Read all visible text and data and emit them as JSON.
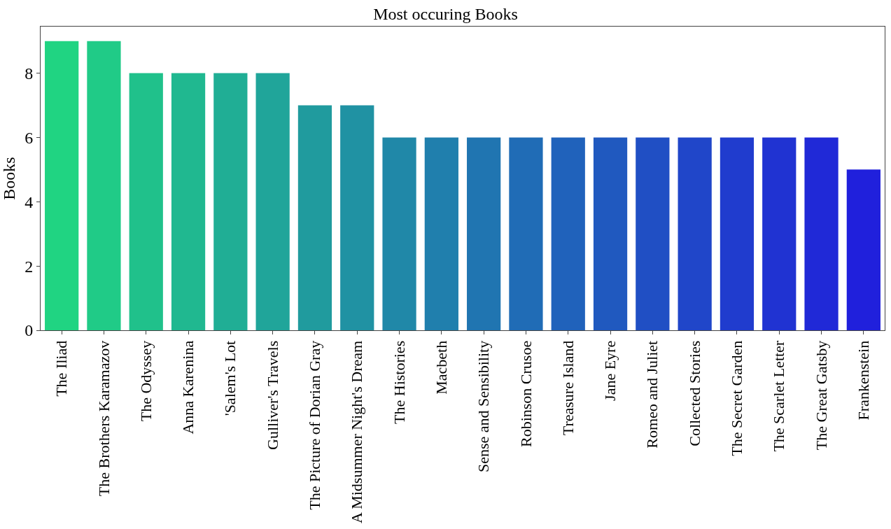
{
  "chart_data": {
    "type": "bar",
    "title": "Most occuring Books",
    "ylabel": "Books",
    "categories": [
      "The Iliad",
      "The Brothers Karamazov",
      "The Odyssey",
      "Anna Karenina",
      "'Salem's Lot",
      "Gulliver's Travels",
      "The Picture of Dorian Gray",
      "A Midsummer Night's Dream",
      "The Histories",
      "Macbeth",
      "Sense and Sensibility",
      "Robinson Crusoe",
      "Treasure Island",
      "Jane Eyre",
      "Romeo and Juliet",
      "Collected Stories",
      "The Secret Garden",
      "The Scarlet Letter",
      "The Great Gatsby",
      "Frankenstein"
    ],
    "values": [
      9,
      9,
      8,
      8,
      8,
      8,
      7,
      7,
      6,
      6,
      6,
      6,
      6,
      6,
      6,
      6,
      6,
      6,
      6,
      5
    ],
    "colors": [
      "#20d482",
      "#20cb87",
      "#20c18b",
      "#20b890",
      "#20ae95",
      "#20a59a",
      "#209b9e",
      "#2092a3",
      "#2088a8",
      "#207fad",
      "#2075b1",
      "#206cb6",
      "#2062bb",
      "#2059bf",
      "#204fc4",
      "#2046c9",
      "#203cce",
      "#2033d2",
      "#2029d7",
      "#2020dc"
    ],
    "ylim": [
      0,
      9.45
    ],
    "yticks": [
      0,
      2,
      4,
      6,
      8
    ],
    "grid": false
  }
}
